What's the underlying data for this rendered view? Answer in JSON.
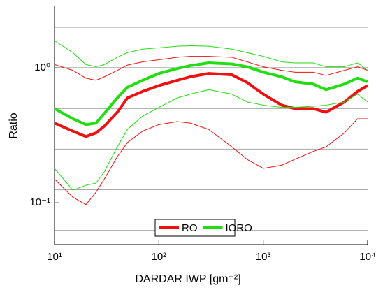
{
  "chart_data": {
    "type": "line",
    "x_label": "DARDAR IWP [gm⁻²]",
    "y_label": "Ratio",
    "xscale": "log",
    "yscale": "log",
    "xlim": [
      10,
      10000
    ],
    "ylim": [
      0.049,
      2.9
    ],
    "xticks": [
      {
        "value": 10,
        "label": "10¹"
      },
      {
        "value": 100,
        "label": "10²"
      },
      {
        "value": 1000,
        "label": "10³"
      },
      {
        "value": 10000,
        "label": "10⁴"
      }
    ],
    "yticks": [
      {
        "value": 0.1,
        "label": "10⁻¹"
      },
      {
        "value": 1,
        "label": "10⁰"
      }
    ],
    "grid_lines": [
      0.0625,
      0.125,
      0.25,
      0.5,
      2
    ],
    "reference_line": 1,
    "legend": "bottom",
    "x": [
      10,
      15,
      20,
      25,
      30,
      40,
      50,
      70,
      100,
      150,
      200,
      300,
      500,
      700,
      1000,
      1500,
      2000,
      3000,
      4000,
      6000,
      8000,
      10000
    ],
    "series": [
      {
        "name": "RO",
        "color": "#ee1111",
        "values": [
          0.39,
          0.34,
          0.31,
          0.33,
          0.37,
          0.47,
          0.6,
          0.67,
          0.74,
          0.81,
          0.86,
          0.91,
          0.89,
          0.78,
          0.64,
          0.53,
          0.5,
          0.5,
          0.47,
          0.56,
          0.67,
          0.74
        ],
        "lower": [
          0.15,
          0.11,
          0.097,
          0.12,
          0.15,
          0.22,
          0.28,
          0.34,
          0.38,
          0.4,
          0.39,
          0.35,
          0.26,
          0.21,
          0.18,
          0.19,
          0.21,
          0.24,
          0.26,
          0.33,
          0.42,
          0.42
        ],
        "upper": [
          1.06,
          0.96,
          0.84,
          0.81,
          0.86,
          0.96,
          1.05,
          1.11,
          1.15,
          1.2,
          1.22,
          1.22,
          1.2,
          1.11,
          1.02,
          0.96,
          0.93,
          0.93,
          0.88,
          0.96,
          1.02,
          0.96
        ]
      },
      {
        "name": "IORO",
        "color": "#22dd11",
        "values": [
          0.5,
          0.42,
          0.38,
          0.39,
          0.46,
          0.6,
          0.72,
          0.81,
          0.91,
          0.99,
          1.04,
          1.09,
          1.07,
          1.02,
          0.93,
          0.86,
          0.79,
          0.76,
          0.69,
          0.76,
          0.84,
          0.79
        ],
        "lower": [
          0.18,
          0.124,
          0.135,
          0.14,
          0.17,
          0.26,
          0.35,
          0.44,
          0.51,
          0.6,
          0.64,
          0.69,
          0.64,
          0.56,
          0.53,
          0.51,
          0.51,
          0.52,
          0.53,
          0.56,
          0.64,
          0.56
        ],
        "upper": [
          1.59,
          1.3,
          1.06,
          1.02,
          1.06,
          1.2,
          1.3,
          1.38,
          1.41,
          1.45,
          1.46,
          1.45,
          1.38,
          1.3,
          1.22,
          1.11,
          1.09,
          1.09,
          1.02,
          1.02,
          1.09,
          0.96
        ]
      }
    ]
  }
}
